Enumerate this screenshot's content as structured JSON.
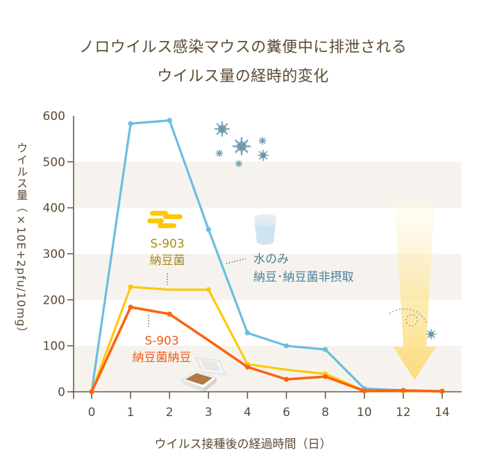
{
  "title_lines": [
    "ノロウイルス感染マウスの糞便中に排泄される",
    "ウイルス量の経時的変化"
  ],
  "labels": {
    "yellow_line1": "S-903",
    "yellow_line2": "納豆菌",
    "orange_line1": "S-903",
    "orange_line2": "納豆菌納豆",
    "blue_line1": "水のみ",
    "blue_line2": "納豆･納豆菌非摂取"
  },
  "icons": [
    "virus-icon",
    "bacteria-icon",
    "water-glass-icon",
    "natto-pack-icon",
    "down-arrow-icon"
  ],
  "colors": {
    "blue": "#6bbde0",
    "yellow": "#fdc80a",
    "orange": "#fd620d",
    "axis": "#6b5a42",
    "band": "#f6f3ef",
    "virus": "#7aa3b5"
  },
  "chart_data": {
    "type": "line",
    "title": "ノロウイルス感染マウスの糞便中に排泄される ウイルス量の経時的変化",
    "xlabel": "ウイルス接種後の経過時間（日）",
    "ylabel": "ウイルス量（×10E+2pfu/10mg）",
    "x": [
      "0",
      "1",
      "2",
      "3",
      "4",
      "6",
      "8",
      "10",
      "12",
      "14"
    ],
    "ylim": [
      0,
      600
    ],
    "yticks": [
      "0",
      "100",
      "200",
      "300",
      "400",
      "500",
      "600"
    ],
    "grid": "alternating horizontal bands",
    "series": [
      {
        "name": "水のみ 納豆･納豆菌非摂取",
        "color": "#6bbde0",
        "values": [
          0,
          583,
          590,
          353,
          128,
          100,
          92,
          7,
          3,
          1
        ],
        "markers": [
          true,
          true,
          true,
          true,
          true,
          true,
          true,
          true,
          true,
          true
        ]
      },
      {
        "name": "S-903 納豆菌",
        "color": "#fdc80a",
        "values": [
          0,
          228,
          222,
          222,
          60,
          48,
          39,
          2,
          2,
          1
        ],
        "markers": [
          true,
          true,
          false,
          true,
          true,
          false,
          true,
          true,
          true,
          true
        ]
      },
      {
        "name": "S-903 納豆菌納豆",
        "color": "#fd620d",
        "values": [
          0,
          184,
          169,
          112,
          54,
          27,
          33,
          2,
          3,
          1
        ],
        "markers": [
          true,
          true,
          true,
          false,
          true,
          true,
          true,
          true,
          true,
          true
        ]
      }
    ]
  }
}
